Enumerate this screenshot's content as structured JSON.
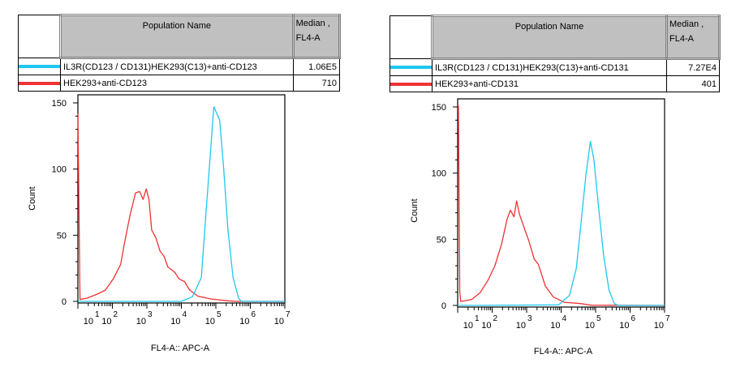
{
  "legend_tables": [
    {
      "header": {
        "population": "Population Name",
        "median": "Median ,",
        "median_param": "FL4-A"
      },
      "rows": [
        {
          "name": "IL3R(CD123 / CD131)HEK293(C13)+anti-CD123",
          "median": "1.06E5",
          "color": "#1ec8f0"
        },
        {
          "name": "HEK293+anti-CD123",
          "median": "710",
          "color": "#f03232"
        }
      ]
    },
    {
      "header": {
        "population": "Population Name",
        "median": "Median ,",
        "median_param": "FL4-A"
      },
      "rows": [
        {
          "name": "IL3R(CD123 / CD131)HEK293(C13)+anti-CD131",
          "median": "7.27E4",
          "color": "#1ec8f0"
        },
        {
          "name": "HEK293+anti-CD131",
          "median": "401",
          "color": "#f03232"
        }
      ]
    }
  ],
  "chart_data": [
    {
      "type": "line",
      "xlabel": "FL4-A:: APC-A",
      "ylabel": "Count",
      "xscale": "log",
      "xlim": [
        10,
        10000000
      ],
      "ylim": [
        0,
        150
      ],
      "x_ticks": [
        10,
        100,
        1000,
        10000,
        100000,
        1000000,
        10000000
      ],
      "x_tick_labels": [
        {
          "base": "10",
          "exp": "1"
        },
        {
          "base": "10",
          "exp": "2"
        },
        {
          "base": "10",
          "exp": "3"
        },
        {
          "base": "10",
          "exp": "4"
        },
        {
          "base": "10",
          "exp": "5"
        },
        {
          "base": "10",
          "exp": "6"
        },
        {
          "base": "10",
          "exp": "7"
        }
      ],
      "y_ticks": [
        0,
        50,
        100,
        150
      ],
      "y_tick_labels": [
        "0",
        "50",
        "100",
        "150"
      ],
      "grid": false,
      "series": [
        {
          "name": "HEK293+anti-CD123",
          "color": "#f03232",
          "points": [
            [
              10,
              142
            ],
            [
              11.5,
              1.4
            ],
            [
              18,
              2.4
            ],
            [
              37,
              5.5
            ],
            [
              63,
              8.6
            ],
            [
              110,
              17.7
            ],
            [
              174,
              28
            ],
            [
              224,
              44
            ],
            [
              324,
              65
            ],
            [
              468,
              82
            ],
            [
              617,
              83
            ],
            [
              776,
              77
            ],
            [
              955,
              85
            ],
            [
              1150,
              77
            ],
            [
              1380,
              54
            ],
            [
              1820,
              48
            ],
            [
              2400,
              38
            ],
            [
              3160,
              34
            ],
            [
              4070,
              26
            ],
            [
              6460,
              22
            ],
            [
              8510,
              17
            ],
            [
              12300,
              15
            ],
            [
              17400,
              8.6
            ],
            [
              30200,
              3.9
            ],
            [
              74100,
              1.8
            ],
            [
              224000,
              0.4
            ],
            [
              398000,
              0
            ],
            [
              10000000,
              0
            ]
          ]
        },
        {
          "name": "IL3R(CD123 / CD131)HEK293(C13)+anti-CD123",
          "color": "#1ec8f0",
          "points": [
            [
              10,
              0
            ],
            [
              10000,
              0
            ],
            [
              20900,
              3.5
            ],
            [
              38000,
              18
            ],
            [
              49000,
              58
            ],
            [
              87100,
              147
            ],
            [
              129000,
              137
            ],
            [
              170000,
              99
            ],
            [
              224000,
              54
            ],
            [
              316000,
              18
            ],
            [
              457000,
              2.5
            ],
            [
              550000,
              0
            ],
            [
              10000000,
              0
            ]
          ]
        }
      ]
    },
    {
      "type": "line",
      "xlabel": "FL4-A:: APC-A",
      "ylabel": "Count",
      "xscale": "log",
      "xlim": [
        10,
        10000000
      ],
      "ylim": [
        0,
        150
      ],
      "x_ticks": [
        10,
        100,
        1000,
        10000,
        100000,
        1000000,
        10000000
      ],
      "x_tick_labels": [
        {
          "base": "10",
          "exp": "1"
        },
        {
          "base": "10",
          "exp": "2"
        },
        {
          "base": "10",
          "exp": "3"
        },
        {
          "base": "10",
          "exp": "4"
        },
        {
          "base": "10",
          "exp": "5"
        },
        {
          "base": "10",
          "exp": "6"
        },
        {
          "base": "10",
          "exp": "7"
        }
      ],
      "y_ticks": [
        0,
        50,
        100,
        150
      ],
      "y_tick_labels": [
        "0",
        "50",
        "100",
        "150"
      ],
      "grid": false,
      "series": [
        {
          "name": "HEK293+anti-CD131",
          "color": "#f03232",
          "points": [
            [
              10.5,
              151
            ],
            [
              11.5,
              10
            ],
            [
              12.3,
              3
            ],
            [
              25.7,
              4.5
            ],
            [
              44.7,
              9.6
            ],
            [
              75.9,
              19
            ],
            [
              120,
              30
            ],
            [
              191,
              47
            ],
            [
              269,
              65
            ],
            [
              339,
              72
            ],
            [
              427,
              67
            ],
            [
              513,
              79
            ],
            [
              617,
              69
            ],
            [
              813,
              60
            ],
            [
              1150,
              49
            ],
            [
              1660,
              35
            ],
            [
              2190,
              31
            ],
            [
              3470,
              14.7
            ],
            [
              5890,
              6.5
            ],
            [
              12300,
              2.4
            ],
            [
              36300,
              1.4
            ],
            [
              74100,
              0.2
            ],
            [
              10000000,
              0
            ]
          ]
        },
        {
          "name": "IL3R(CD123 / CD131)HEK293(C13)+anti-CD131",
          "color": "#1ec8f0",
          "points": [
            [
              10,
              0
            ],
            [
              8510,
              0.4
            ],
            [
              17400,
              7.5
            ],
            [
              27500,
              28
            ],
            [
              36300,
              58
            ],
            [
              52500,
              99
            ],
            [
              70800,
              124
            ],
            [
              89100,
              110
            ],
            [
              117000,
              79
            ],
            [
              170000,
              38
            ],
            [
              245000,
              11.6
            ],
            [
              347000,
              1.4
            ],
            [
              457000,
              0
            ],
            [
              10000000,
              0
            ]
          ]
        }
      ]
    }
  ]
}
